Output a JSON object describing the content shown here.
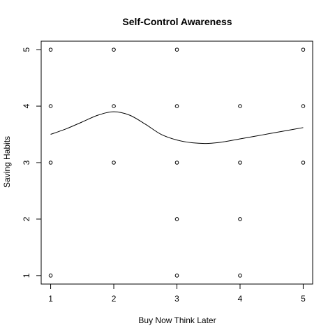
{
  "chart_data": {
    "type": "scatter",
    "title": "Self-Control Awareness",
    "xlabel": "Buy Now Think Later",
    "ylabel": "Saving Habits",
    "xlim": [
      0.85,
      5.15
    ],
    "ylim": [
      0.85,
      5.15
    ],
    "x_ticks": [
      1,
      2,
      3,
      4,
      5
    ],
    "y_ticks": [
      1,
      2,
      3,
      4,
      5
    ],
    "grid": false,
    "legend": "none",
    "points": [
      {
        "x": 1,
        "y": 5
      },
      {
        "x": 2,
        "y": 5
      },
      {
        "x": 3,
        "y": 5
      },
      {
        "x": 5,
        "y": 5
      },
      {
        "x": 1,
        "y": 4
      },
      {
        "x": 2,
        "y": 4
      },
      {
        "x": 3,
        "y": 4
      },
      {
        "x": 4,
        "y": 4
      },
      {
        "x": 5,
        "y": 4
      },
      {
        "x": 1,
        "y": 3
      },
      {
        "x": 2,
        "y": 3
      },
      {
        "x": 3,
        "y": 3
      },
      {
        "x": 4,
        "y": 3
      },
      {
        "x": 5,
        "y": 3
      },
      {
        "x": 3,
        "y": 2
      },
      {
        "x": 4,
        "y": 2
      },
      {
        "x": 1,
        "y": 1
      },
      {
        "x": 3,
        "y": 1
      },
      {
        "x": 4,
        "y": 1
      }
    ],
    "smooth_line": [
      {
        "x": 1.0,
        "y": 3.5
      },
      {
        "x": 1.25,
        "y": 3.6
      },
      {
        "x": 1.5,
        "y": 3.72
      },
      {
        "x": 1.75,
        "y": 3.84
      },
      {
        "x": 2.0,
        "y": 3.9
      },
      {
        "x": 2.25,
        "y": 3.84
      },
      {
        "x": 2.5,
        "y": 3.68
      },
      {
        "x": 2.75,
        "y": 3.5
      },
      {
        "x": 3.0,
        "y": 3.4
      },
      {
        "x": 3.25,
        "y": 3.35
      },
      {
        "x": 3.5,
        "y": 3.34
      },
      {
        "x": 3.75,
        "y": 3.37
      },
      {
        "x": 4.0,
        "y": 3.42
      },
      {
        "x": 4.25,
        "y": 3.47
      },
      {
        "x": 4.5,
        "y": 3.52
      },
      {
        "x": 4.75,
        "y": 3.57
      },
      {
        "x": 5.0,
        "y": 3.62
      }
    ],
    "colors": {
      "points": "#000000",
      "line": "#000000",
      "frame": "#000000"
    }
  }
}
